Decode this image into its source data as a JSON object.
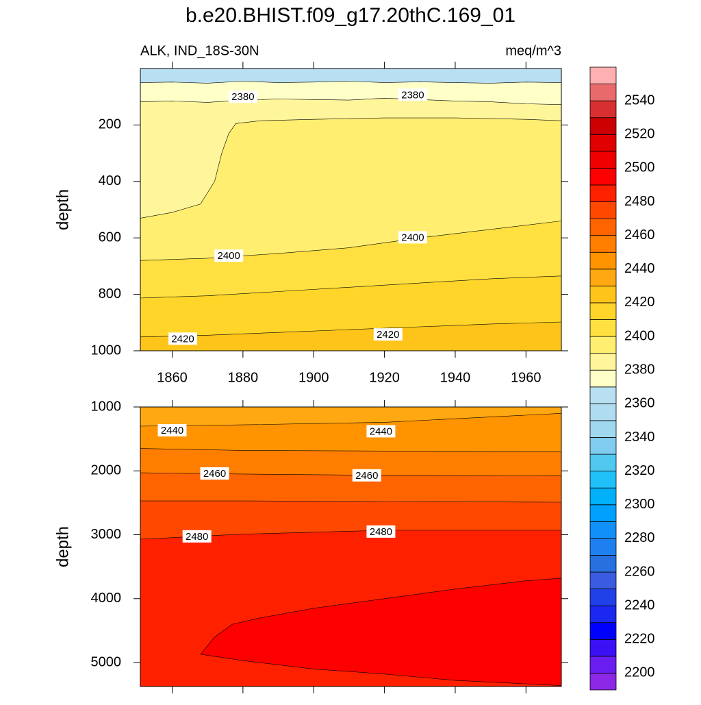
{
  "chart_data": [
    {
      "type": "contour",
      "title": "b.e20.BHIST.f09_g17.20thC.169_01",
      "subtitle": "ALK, IND_18S-30N",
      "units": "meq/m^3",
      "ylabel": "depth",
      "xlim": [
        1851,
        1970
      ],
      "ylim": [
        0,
        1000
      ],
      "reverse_y": true,
      "xticks": [
        1860,
        1880,
        1900,
        1920,
        1940,
        1960
      ],
      "yticks": [
        200,
        400,
        600,
        800,
        1000
      ],
      "show_xtick_labels": true,
      "base_color": "#b8e0f2",
      "contours": [
        {
          "level": 2370,
          "x": [
            1851,
            1860,
            1870,
            1880,
            1890,
            1900,
            1910,
            1920,
            1930,
            1940,
            1950,
            1960,
            1970
          ],
          "y": [
            50,
            48,
            52,
            45,
            50,
            48,
            45,
            50,
            47,
            50,
            52,
            48,
            50
          ]
        },
        {
          "level": 2380,
          "x": [
            1851,
            1860,
            1870,
            1880,
            1890,
            1900,
            1910,
            1920,
            1930,
            1940,
            1950,
            1960,
            1970
          ],
          "y": [
            118,
            115,
            120,
            112,
            108,
            110,
            112,
            105,
            110,
            115,
            118,
            125,
            128
          ]
        },
        {
          "level": 2390,
          "x": [
            1851,
            1860,
            1868,
            1872,
            1874,
            1876,
            1878,
            1885,
            1900,
            1920,
            1940,
            1960,
            1970
          ],
          "y": [
            530,
            510,
            480,
            400,
            300,
            230,
            195,
            185,
            180,
            175,
            175,
            180,
            185
          ]
        },
        {
          "level": 2400,
          "x": [
            1851,
            1870,
            1890,
            1910,
            1930,
            1950,
            1970
          ],
          "y": [
            680,
            672,
            655,
            635,
            600,
            570,
            540
          ]
        },
        {
          "level": 2410,
          "x": [
            1851,
            1870,
            1890,
            1910,
            1930,
            1950,
            1970
          ],
          "y": [
            813,
            805,
            790,
            775,
            760,
            745,
            735
          ]
        },
        {
          "level": 2420,
          "x": [
            1851,
            1870,
            1890,
            1910,
            1930,
            1950,
            1970
          ],
          "y": [
            951,
            945,
            935,
            925,
            915,
            905,
            898
          ]
        }
      ],
      "labels": [
        {
          "value": 2380,
          "x": 1880,
          "y": 100
        },
        {
          "value": 2380,
          "x": 1928,
          "y": 93
        },
        {
          "value": 2400,
          "x": 1876,
          "y": 663
        },
        {
          "value": 2400,
          "x": 1928,
          "y": 598
        },
        {
          "value": 2420,
          "x": 1863,
          "y": 957
        },
        {
          "value": 2420,
          "x": 1921,
          "y": 942
        }
      ]
    },
    {
      "type": "contour",
      "ylabel": "depth",
      "xlim": [
        1851,
        1970
      ],
      "ylim": [
        1000,
        5375
      ],
      "reverse_y": true,
      "xticks": [
        1860,
        1880,
        1900,
        1920,
        1940,
        1960
      ],
      "yticks": [
        1000,
        2000,
        3000,
        4000,
        5000
      ],
      "show_xtick_labels": false,
      "base_color": "#ffa812",
      "contours": [
        {
          "level": 2440,
          "x": [
            1851,
            1880,
            1920,
            1970
          ],
          "y": [
            1300,
            1280,
            1240,
            1100
          ]
        },
        {
          "level": 2450,
          "x": [
            1851,
            1880,
            1920,
            1970
          ],
          "y": [
            1650,
            1680,
            1690,
            1700
          ]
        },
        {
          "level": 2460,
          "x": [
            1851,
            1880,
            1920,
            1970
          ],
          "y": [
            2030,
            2050,
            2070,
            2080
          ]
        },
        {
          "level": 2470,
          "x": [
            1851,
            1880,
            1920,
            1970
          ],
          "y": [
            2470,
            2470,
            2480,
            2490
          ]
        },
        {
          "level": 2480,
          "x": [
            1851,
            1880,
            1920,
            1970
          ],
          "y": [
            3070,
            2990,
            2930,
            2930
          ]
        },
        {
          "level": 2490,
          "closed": true,
          "x": [
            1868,
            1872,
            1877,
            1885,
            1900,
            1920,
            1940,
            1960,
            1970,
            1970,
            1940,
            1920,
            1900,
            1880,
            1868
          ],
          "y": [
            4870,
            4600,
            4400,
            4300,
            4150,
            4000,
            3850,
            3720,
            3680,
            5360,
            5280,
            5180,
            5100,
            4970,
            4870
          ]
        }
      ],
      "labels": [
        {
          "value": 2440,
          "x": 1860,
          "y": 1365
        },
        {
          "value": 2440,
          "x": 1919,
          "y": 1380
        },
        {
          "value": 2460,
          "x": 1872,
          "y": 2040
        },
        {
          "value": 2460,
          "x": 1915,
          "y": 2070
        },
        {
          "value": 2480,
          "x": 1867,
          "y": 3025
        },
        {
          "value": 2480,
          "x": 1919,
          "y": 2950
        }
      ]
    }
  ],
  "colorbar": {
    "levels": [
      2200,
      2210,
      2220,
      2230,
      2240,
      2250,
      2260,
      2270,
      2280,
      2290,
      2300,
      2310,
      2320,
      2330,
      2340,
      2350,
      2360,
      2370,
      2380,
      2390,
      2400,
      2410,
      2420,
      2430,
      2440,
      2450,
      2460,
      2470,
      2480,
      2490,
      2500,
      2510,
      2520,
      2530,
      2540,
      2550
    ],
    "colors": [
      "#8c28e6",
      "#6a1ef0",
      "#3a10f5",
      "#0000ff",
      "#1a28f0",
      "#2040e8",
      "#3a5ce0",
      "#2870e0",
      "#1e80f0",
      "#1090f8",
      "#00a0ff",
      "#00b0f8",
      "#20c0f8",
      "#50c8f0",
      "#80ccf0",
      "#a0d8f0",
      "#b0dcf0",
      "#b8e0f2",
      "#ffffc8",
      "#fff59a",
      "#ffee70",
      "#ffe040",
      "#ffd52a",
      "#ffc41a",
      "#ffa812",
      "#ff9400",
      "#ff7e00",
      "#ff6400",
      "#ff4800",
      "#ff2000",
      "#ff0000",
      "#f00000",
      "#e00000",
      "#cc0000",
      "#d83030",
      "#e86a6a",
      "#ffb0b0"
    ],
    "ticks": [
      2200,
      2220,
      2240,
      2260,
      2280,
      2300,
      2320,
      2340,
      2360,
      2380,
      2400,
      2420,
      2440,
      2460,
      2480,
      2500,
      2520,
      2540
    ]
  }
}
